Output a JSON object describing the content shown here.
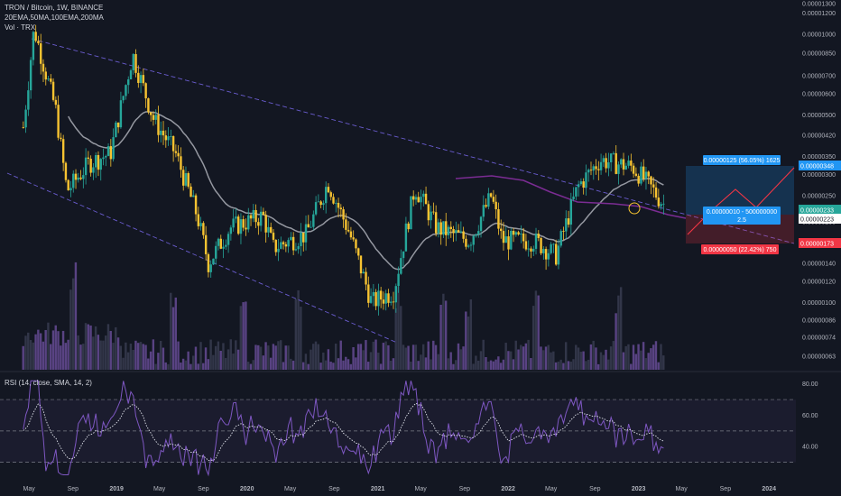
{
  "legend": {
    "symbol_line": "TRON / Bitcoin, 1W, BINANCE",
    "ma_line": "20EMA,50MA,100EMA,200MA",
    "vol_line": "Vol · TRX",
    "rsi_line": "RSI (14, close, SMA, 14, 2)"
  },
  "colors": {
    "background": "#131722",
    "up": "#26a69a",
    "down": "#f7c331",
    "ema": "#9598a1",
    "ma200": "#7b2c93",
    "channel": "#6a5ccf",
    "rsi": "#7e57c2",
    "volume": "#5b5f70"
  },
  "price_axis": {
    "labels": [
      "0.00001300",
      "0.00001200",
      "0.00001000",
      "0.00000850",
      "0.00000700",
      "0.00000600",
      "0.00000500",
      "0.00000420",
      "0.00000350",
      "0.00000300",
      "0.00000250",
      "0.00000200",
      "0.00000170",
      "0.00000140",
      "0.00000120",
      "0.00000100",
      "0.00000086",
      "0.00000074",
      "0.00000063"
    ],
    "badges": [
      {
        "text": "0.00000348",
        "color": "#2196f3"
      },
      {
        "text": "0.00000233",
        "color": "#26a69a"
      },
      {
        "text": "0.00000223",
        "color": "#ffffff"
      },
      {
        "text": "0.00000173",
        "color": "#f23645"
      }
    ]
  },
  "rsi_axis": {
    "labels": [
      "80.00",
      "60.00",
      "40.00"
    ]
  },
  "time_axis": {
    "labels": [
      "May",
      "Sep",
      "2019",
      "May",
      "Sep",
      "2020",
      "May",
      "Sep",
      "2021",
      "May",
      "Sep",
      "2022",
      "May",
      "Sep",
      "2023",
      "May",
      "Sep",
      "2024"
    ]
  },
  "position_tool": {
    "target": "0.00000125 (56.05%) 1625",
    "entry": "0.00000010 - 500000000",
    "ratio": "2.5",
    "stop": "0.00000050 (22.42%) 750"
  },
  "chart_data": {
    "type": "candlestick",
    "title": "TRON / Bitcoin, 1W, BINANCE",
    "indicators": [
      "20EMA",
      "50MA",
      "100EMA",
      "200MA",
      "Vol · TRX",
      "RSI (14, close, SMA, 14, 2)"
    ],
    "close_path": [
      [
        "2018-04",
        4.5e-06
      ],
      [
        "2018-05",
        1.05e-05
      ],
      [
        "2018-07",
        5.2e-06
      ],
      [
        "2018-08",
        2.6e-06
      ],
      [
        "2018-10",
        3.3e-06
      ],
      [
        "2018-12",
        3.6e-06
      ],
      [
        "2019-02",
        8.4e-06
      ],
      [
        "2019-04",
        4.8e-06
      ],
      [
        "2019-06",
        3.6e-06
      ],
      [
        "2019-08",
        2.1e-06
      ],
      [
        "2019-09",
        1.4e-06
      ],
      [
        "2019-11",
        1.9e-06
      ],
      [
        "2020-02",
        2.1e-06
      ],
      [
        "2020-03",
        1.6e-06
      ],
      [
        "2020-06",
        1.8e-06
      ],
      [
        "2020-08",
        2.8e-06
      ],
      [
        "2020-10",
        1.8e-06
      ],
      [
        "2020-12",
        1e-06
      ],
      [
        "2021-02",
        1.1e-06
      ],
      [
        "2021-04",
        2.7e-06
      ],
      [
        "2021-06",
        1.9e-06
      ],
      [
        "2021-09",
        1.7e-06
      ],
      [
        "2021-11",
        2.5e-06
      ],
      [
        "2021-12",
        1.7e-06
      ],
      [
        "2022-03",
        1.7e-06
      ],
      [
        "2022-05",
        1.5e-06
      ],
      [
        "2022-07",
        2.7e-06
      ],
      [
        "2022-09",
        3.4e-06
      ],
      [
        "2022-12",
        3.2e-06
      ],
      [
        "2023-01",
        2.9e-06
      ],
      [
        "2023-03",
        2.3e-06
      ]
    ],
    "rsi_levels": [
      70,
      50,
      30
    ],
    "rsi_ylim": [
      20,
      85
    ]
  }
}
